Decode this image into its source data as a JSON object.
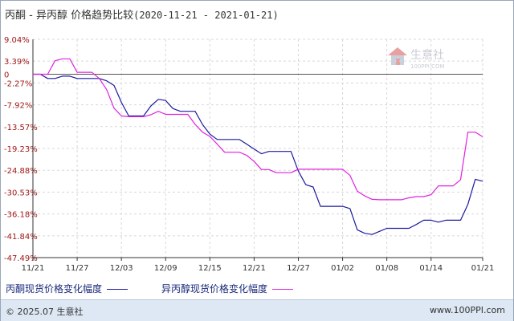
{
  "header": {
    "title": "丙酮 - 异丙醇 价格趋势比较",
    "date_range": "(2020-11-21 - 2021-01-21)"
  },
  "watermark": {
    "brand": "生意社",
    "url": "100PPI.COM"
  },
  "footer": {
    "copyright": "© 2025.07 生意社",
    "site": "www.100PPI.com"
  },
  "chart_data": {
    "type": "line",
    "title": "丙酮 - 异丙醇 价格趋势比较",
    "x_ticks": [
      "11/21",
      "11/27",
      "12/03",
      "12/09",
      "12/15",
      "12/21",
      "12/27",
      "01/02",
      "01/08",
      "01/14",
      "01/21"
    ],
    "x_range": [
      "2020-11-21",
      "2021-01-21"
    ],
    "y_ticks": [
      "9.04%",
      "3.39%",
      "-2.27%",
      "-7.92%",
      "-13.57%",
      "-19.23%",
      "-24.88%",
      "-30.53%",
      "-36.18%",
      "-41.84%",
      "-47.49%"
    ],
    "ylim": [
      -47.49,
      9.04
    ],
    "grid": true,
    "legend_position": "bottom",
    "colors": {
      "acetone": "#1a1aa0",
      "ipa": "#e020e0",
      "grid": "#d8d8d8",
      "axis": "#333333",
      "tick_label": "#a01818"
    },
    "series": [
      {
        "name": "丙酮现货价格变化幅度",
        "color": "#1a1aa0",
        "x": [
          "2020-11-21",
          "2020-11-22",
          "2020-11-23",
          "2020-11-24",
          "2020-11-25",
          "2020-11-26",
          "2020-11-27",
          "2020-11-28",
          "2020-11-29",
          "2020-11-30",
          "2020-12-01",
          "2020-12-02",
          "2020-12-03",
          "2020-12-04",
          "2020-12-05",
          "2020-12-06",
          "2020-12-07",
          "2020-12-08",
          "2020-12-09",
          "2020-12-10",
          "2020-12-11",
          "2020-12-12",
          "2020-12-13",
          "2020-12-14",
          "2020-12-15",
          "2020-12-16",
          "2020-12-17",
          "2020-12-18",
          "2020-12-19",
          "2020-12-20",
          "2020-12-21",
          "2020-12-22",
          "2020-12-23",
          "2020-12-24",
          "2020-12-25",
          "2020-12-26",
          "2020-12-27",
          "2020-12-28",
          "2020-12-29",
          "2020-12-30",
          "2020-12-31",
          "2021-01-01",
          "2021-01-02",
          "2021-01-03",
          "2021-01-04",
          "2021-01-05",
          "2021-01-06",
          "2021-01-07",
          "2021-01-08",
          "2021-01-09",
          "2021-01-10",
          "2021-01-11",
          "2021-01-12",
          "2021-01-13",
          "2021-01-14",
          "2021-01-15",
          "2021-01-16",
          "2021-01-17",
          "2021-01-18",
          "2021-01-19",
          "2021-01-20",
          "2021-01-21"
        ],
        "values": [
          0.0,
          0.0,
          -1.1,
          -1.1,
          -0.5,
          -0.5,
          -1.1,
          -1.1,
          -1.1,
          -1.1,
          -1.7,
          -2.9,
          -7.3,
          -10.8,
          -10.8,
          -10.8,
          -8.2,
          -6.5,
          -6.8,
          -8.9,
          -9.6,
          -9.6,
          -9.6,
          -13.0,
          -15.5,
          -16.9,
          -16.9,
          -16.9,
          -16.9,
          -18.1,
          -19.4,
          -20.6,
          -20.0,
          -20.0,
          -20.0,
          -20.0,
          -25.1,
          -28.6,
          -29.2,
          -34.2,
          -34.2,
          -34.2,
          -34.2,
          -34.8,
          -40.3,
          -41.2,
          -41.5,
          -40.7,
          -39.9,
          -39.9,
          -39.9,
          -39.9,
          -38.9,
          -37.8,
          -37.8,
          -38.3,
          -37.8,
          -37.8,
          -37.8,
          -33.7,
          -27.2,
          -27.7
        ]
      },
      {
        "name": "异丙醇现货价格变化幅度",
        "color": "#e020e0",
        "x": [
          "2020-11-21",
          "2020-11-22",
          "2020-11-23",
          "2020-11-24",
          "2020-11-25",
          "2020-11-26",
          "2020-11-27",
          "2020-11-28",
          "2020-11-29",
          "2020-11-30",
          "2020-12-01",
          "2020-12-02",
          "2020-12-03",
          "2020-12-04",
          "2020-12-05",
          "2020-12-06",
          "2020-12-07",
          "2020-12-08",
          "2020-12-09",
          "2020-12-10",
          "2020-12-11",
          "2020-12-12",
          "2020-12-13",
          "2020-12-14",
          "2020-12-15",
          "2020-12-16",
          "2020-12-17",
          "2020-12-18",
          "2020-12-19",
          "2020-12-20",
          "2020-12-21",
          "2020-12-22",
          "2020-12-23",
          "2020-12-24",
          "2020-12-25",
          "2020-12-26",
          "2020-12-27",
          "2020-12-28",
          "2020-12-29",
          "2020-12-30",
          "2020-12-31",
          "2021-01-01",
          "2021-01-02",
          "2021-01-03",
          "2021-01-04",
          "2021-01-05",
          "2021-01-06",
          "2021-01-07",
          "2021-01-08",
          "2021-01-09",
          "2021-01-10",
          "2021-01-11",
          "2021-01-12",
          "2021-01-13",
          "2021-01-14",
          "2021-01-15",
          "2021-01-16",
          "2021-01-17",
          "2021-01-18",
          "2021-01-19",
          "2021-01-20",
          "2021-01-21"
        ],
        "values": [
          0.0,
          0.0,
          0.0,
          3.5,
          4.0,
          4.0,
          0.5,
          0.5,
          0.5,
          -1.1,
          -4.0,
          -8.8,
          -10.8,
          -11.0,
          -11.0,
          -11.0,
          -10.5,
          -9.6,
          -10.4,
          -10.4,
          -10.4,
          -10.4,
          -13.0,
          -15.0,
          -16.1,
          -18.1,
          -20.2,
          -20.2,
          -20.2,
          -21.0,
          -22.6,
          -24.7,
          -24.7,
          -25.5,
          -25.5,
          -25.5,
          -24.6,
          -24.6,
          -24.6,
          -24.6,
          -24.6,
          -24.6,
          -24.6,
          -26.2,
          -30.3,
          -31.5,
          -32.4,
          -32.5,
          -32.5,
          -32.5,
          -32.5,
          -32.0,
          -31.7,
          -31.7,
          -31.2,
          -28.9,
          -28.9,
          -28.9,
          -27.3,
          -15.0,
          -15.0,
          -16.2
        ]
      }
    ]
  }
}
